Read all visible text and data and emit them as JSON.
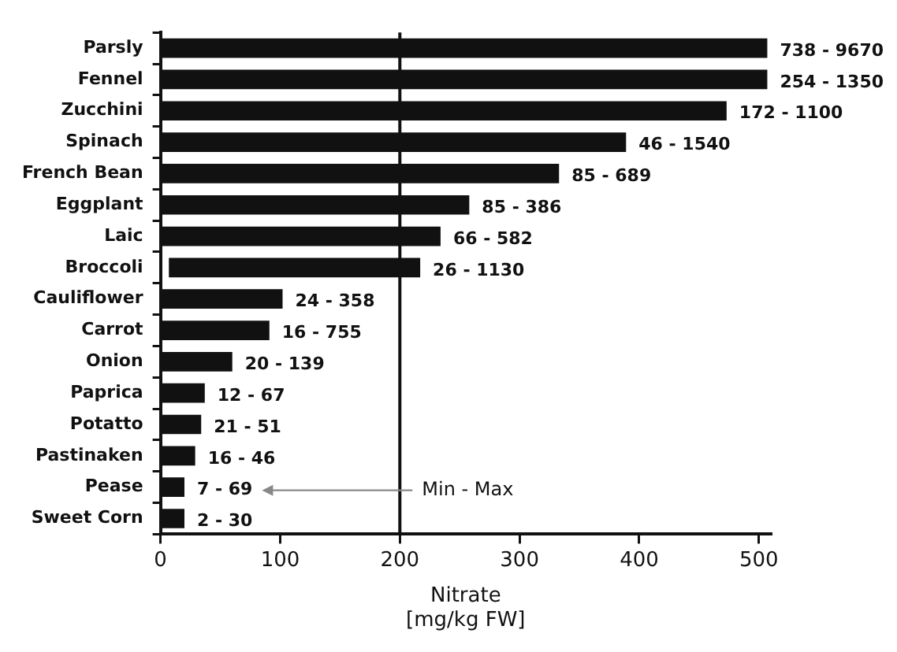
{
  "chart_data": {
    "type": "bar",
    "orientation": "horizontal",
    "xlabel": "Nitrate\n[mg/kg FW]",
    "categories": [
      "Parsly",
      "Fennel",
      "Zucchini",
      "Spinach",
      "French Bean",
      "Eggplant",
      "Laic",
      "Broccoli",
      "Cauliflower",
      "Carrot",
      "Onion",
      "Paprica",
      "Potatto",
      "Pastinaken",
      "Pease",
      "Sweet Corn"
    ],
    "base": [
      0,
      0,
      0,
      0,
      0,
      0,
      0,
      7,
      0,
      0,
      0,
      0,
      0,
      0,
      0,
      0
    ],
    "values": [
      507,
      507,
      473,
      389,
      333,
      258,
      234,
      210,
      102,
      91,
      60,
      37,
      34,
      29,
      20,
      20
    ],
    "color": "#111111",
    "xlim": [
      0,
      510
    ],
    "xticks": [
      0,
      100,
      200,
      300,
      400,
      500
    ],
    "ref_lines": [
      {
        "axis": "x",
        "value": 200,
        "color": "#111111"
      }
    ],
    "annotations": [
      {
        "text": "738 - 9670",
        "x": 507,
        "y": "Parsly"
      },
      {
        "text": "254 - 1350",
        "x": 507,
        "y": "Fennel"
      },
      {
        "text": "172 - 1100",
        "x": 473,
        "y": "Zucchini"
      },
      {
        "text": "46 - 1540",
        "x": 389,
        "y": "Spinach"
      },
      {
        "text": "85 - 689",
        "x": 333,
        "y": "French Bean"
      },
      {
        "text": "85 - 386",
        "x": 258,
        "y": "Eggplant"
      },
      {
        "text": "66 - 582",
        "x": 234,
        "y": "Laic"
      },
      {
        "text": "26 - 1130",
        "x": 217,
        "y": "Broccoli"
      },
      {
        "text": "24 - 358",
        "x": 102,
        "y": "Cauliflower"
      },
      {
        "text": "16 - 755",
        "x": 91,
        "y": "Carrot"
      },
      {
        "text": "20 - 139",
        "x": 60,
        "y": "Onion"
      },
      {
        "text": "12 - 67",
        "x": 37,
        "y": "Paprica"
      },
      {
        "text": "21 - 51",
        "x": 34,
        "y": "Potatto"
      },
      {
        "text": "16 - 46",
        "x": 29,
        "y": "Pastinaken"
      },
      {
        "text": "7 - 69",
        "x": 20,
        "y": "Pease"
      },
      {
        "text": "2 - 30",
        "x": 20,
        "y": "Sweet Corn"
      },
      {
        "text": "Min - Max",
        "x": 200,
        "y": "Pease"
      }
    ],
    "grid": false,
    "legend": false
  }
}
